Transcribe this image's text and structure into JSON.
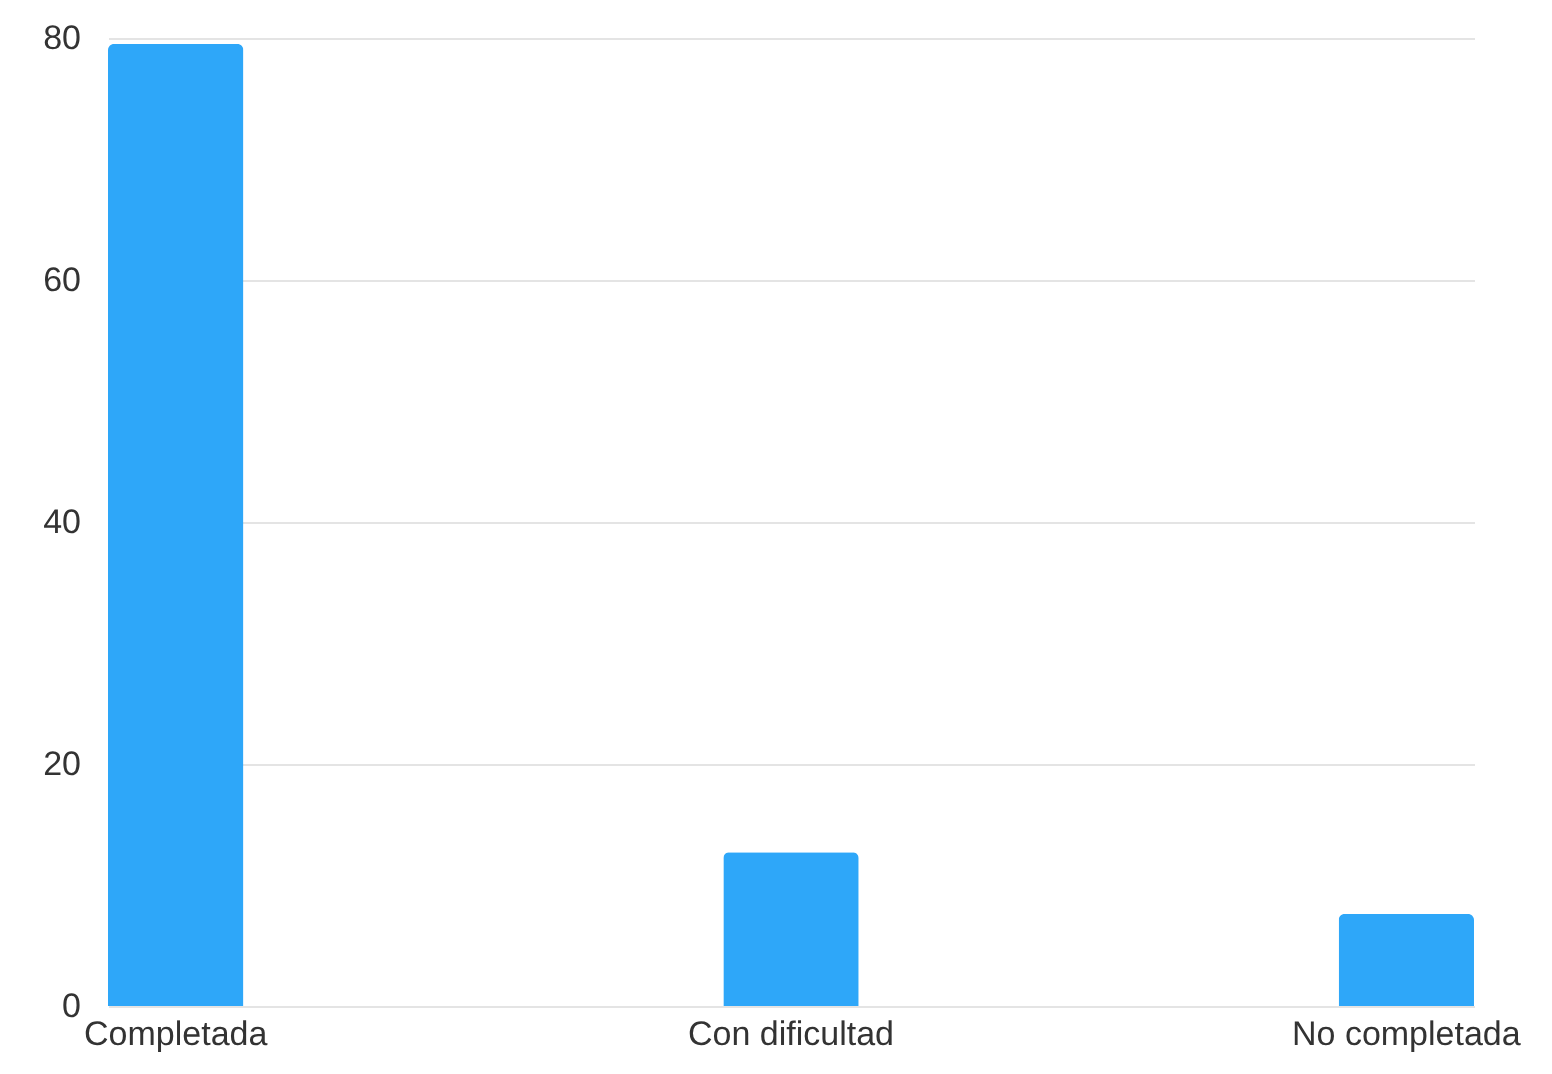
{
  "chart_data": {
    "type": "bar",
    "categories": [
      "Completada",
      "Con dificultad",
      "No completada"
    ],
    "values": [
      79.5,
      12.7,
      7.6
    ],
    "color": "#2ea7f9",
    "ylim": [
      0,
      80
    ],
    "yticks": [
      0,
      20,
      40,
      60,
      80
    ],
    "grid": "y"
  }
}
